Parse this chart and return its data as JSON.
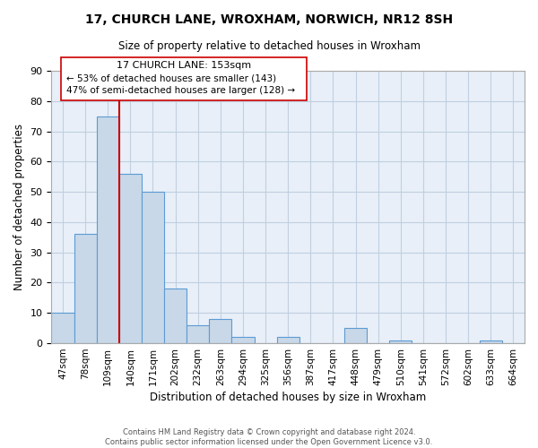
{
  "title": "17, CHURCH LANE, WROXHAM, NORWICH, NR12 8SH",
  "subtitle": "Size of property relative to detached houses in Wroxham",
  "xlabel": "Distribution of detached houses by size in Wroxham",
  "ylabel": "Number of detached properties",
  "bar_color": "#c8d8e8",
  "bar_edge_color": "#5b9bd5",
  "marker_line_color": "#cc0000",
  "marker_bin_index": 3,
  "categories": [
    "47sqm",
    "78sqm",
    "109sqm",
    "140sqm",
    "171sqm",
    "202sqm",
    "232sqm",
    "263sqm",
    "294sqm",
    "325sqm",
    "356sqm",
    "387sqm",
    "417sqm",
    "448sqm",
    "479sqm",
    "510sqm",
    "541sqm",
    "572sqm",
    "602sqm",
    "633sqm",
    "664sqm"
  ],
  "values": [
    10,
    36,
    75,
    56,
    50,
    18,
    6,
    8,
    2,
    0,
    2,
    0,
    0,
    5,
    0,
    1,
    0,
    0,
    0,
    1,
    0
  ],
  "ylim": [
    0,
    90
  ],
  "yticks": [
    0,
    10,
    20,
    30,
    40,
    50,
    60,
    70,
    80,
    90
  ],
  "annotation_line1": "17 CHURCH LANE: 153sqm",
  "annotation_line2": "← 53% of detached houses are smaller (143)",
  "annotation_line3": "47% of semi-detached houses are larger (128) →",
  "footer_line1": "Contains HM Land Registry data © Crown copyright and database right 2024.",
  "footer_line2": "Contains public sector information licensed under the Open Government Licence v3.0.",
  "background_color": "#ffffff",
  "axes_background": "#e8eff8",
  "grid_color": "#c0cfe0"
}
